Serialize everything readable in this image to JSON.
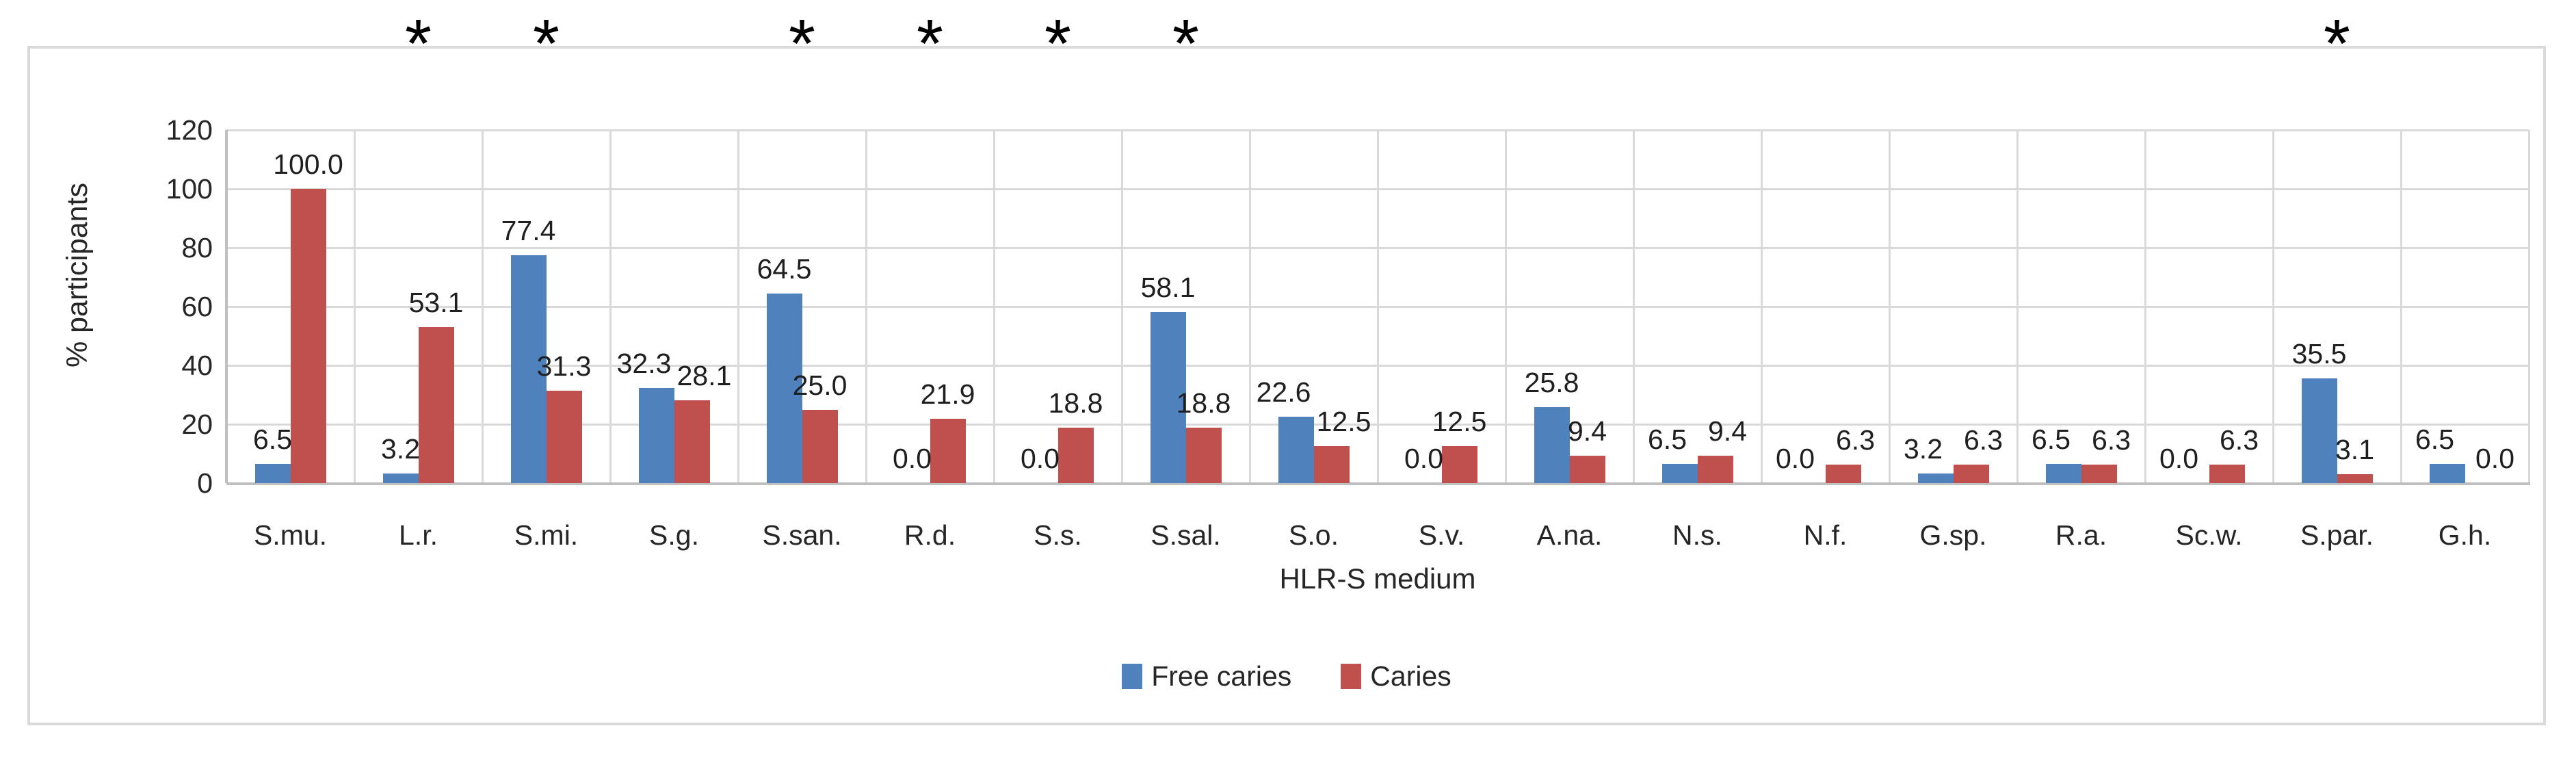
{
  "chart_data": {
    "type": "bar",
    "title": "",
    "xlabel": "HLR-S medium",
    "ylabel": "% participants",
    "ylim": [
      0,
      120
    ],
    "yticks": [
      0,
      20,
      40,
      60,
      80,
      100,
      120
    ],
    "grid": "on",
    "legend_position": "bottom",
    "value_label_format": "one_decimal",
    "significance_marker": "*",
    "categories": [
      "S.mu.",
      "L.r.",
      "S.mi.",
      "S.g.",
      "S.san.",
      "R.d.",
      "S.s.",
      "S.sal.",
      "S.o.",
      "S.v.",
      "A.na.",
      "N.s.",
      "N.f.",
      "G.sp.",
      "R.a.",
      "Sc.w.",
      "S.par.",
      "G.h."
    ],
    "significant_categories": [
      "L.r.",
      "S.mi.",
      "S.san.",
      "R.d.",
      "S.s.",
      "S.sal.",
      "S.par."
    ],
    "series": [
      {
        "name": "Free caries",
        "color": "#4F81BD",
        "values": [
          6.5,
          3.2,
          77.4,
          32.3,
          64.5,
          0.0,
          0.0,
          58.1,
          22.6,
          0.0,
          25.8,
          6.5,
          0.0,
          3.2,
          6.5,
          0.0,
          35.5,
          6.5
        ]
      },
      {
        "name": "Caries",
        "color": "#C0504D",
        "values": [
          100.0,
          53.1,
          31.3,
          28.1,
          25.0,
          21.9,
          18.8,
          18.8,
          12.5,
          12.5,
          9.4,
          9.4,
          6.3,
          6.3,
          6.3,
          6.3,
          3.1,
          0.0
        ]
      }
    ],
    "colors": {
      "gridline": "#D9D9D9",
      "axis_line": "#BFBFBF",
      "text": "#262626",
      "chart_border": "#D9D9D9",
      "background": "#FFFFFF"
    }
  }
}
